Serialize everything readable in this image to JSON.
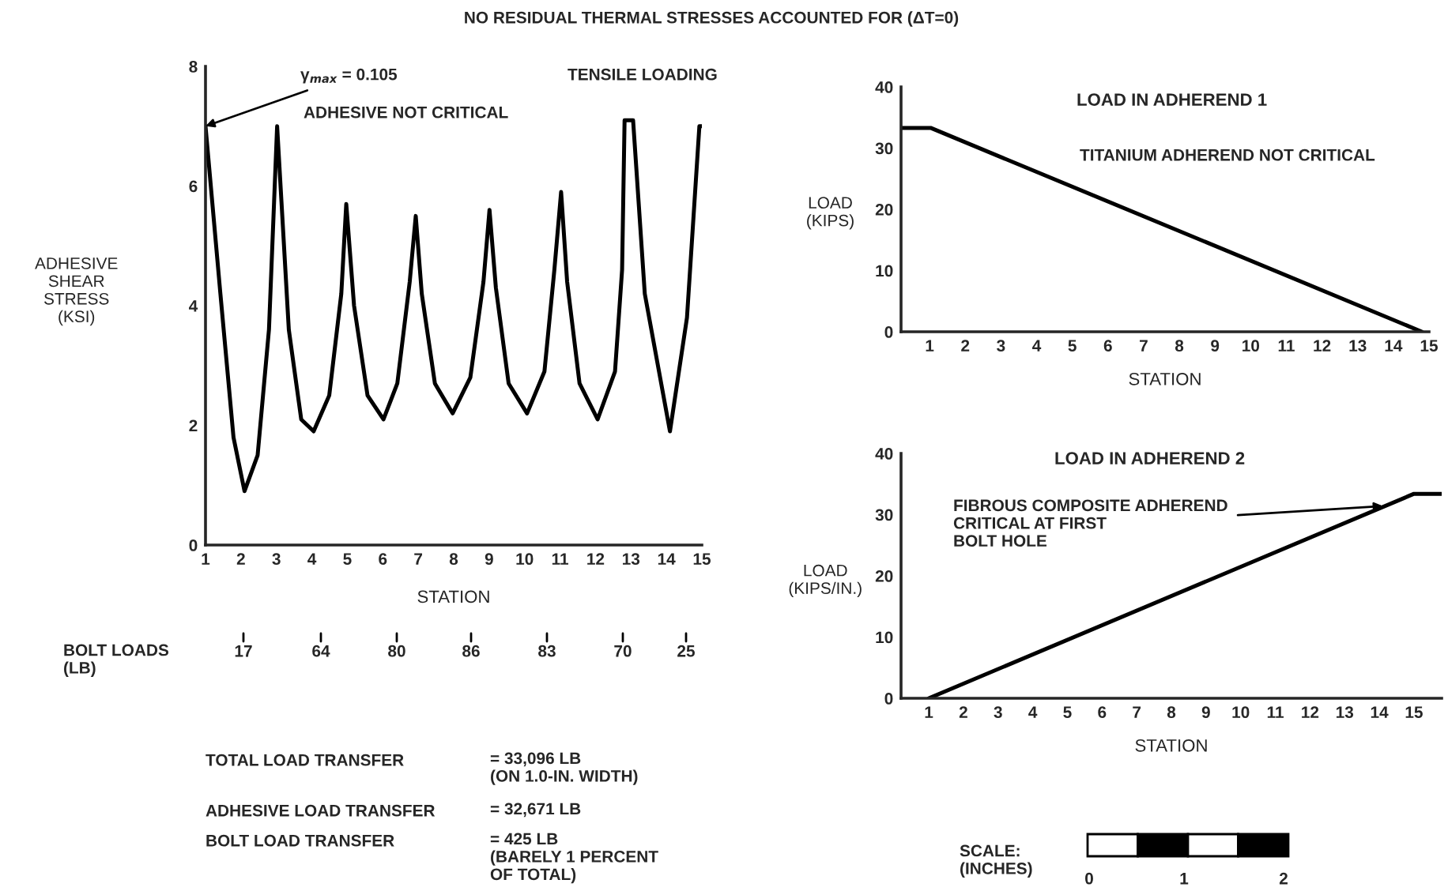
{
  "chart_data": [
    {
      "type": "line",
      "title": "NO RESIDUAL THERMAL STRESSES ACCOUNTED FOR (ΔT=0)",
      "xlabel": "STATION",
      "ylabel": "ADHESIVE\nSHEAR\nSTRESS\n(KSI)",
      "x": [
        1.0,
        1.42,
        1.79,
        2.1,
        2.47,
        2.79,
        3.02,
        3.35,
        3.7,
        4.05,
        4.49,
        4.83,
        4.97,
        5.19,
        5.57,
        6.02,
        6.41,
        6.76,
        6.93,
        7.1,
        7.47,
        7.97,
        8.47,
        8.84,
        9.01,
        9.19,
        9.55,
        10.07,
        10.56,
        10.84,
        11.03,
        11.2,
        11.55,
        12.06,
        12.55,
        12.75,
        12.82,
        13.06,
        13.39,
        14.1,
        14.58,
        14.93,
        15.0
      ],
      "series": [
        {
          "color": "#000000",
          "values": [
            7.0,
            4.2,
            1.8,
            0.9,
            1.5,
            3.6,
            7.0,
            3.6,
            2.1,
            1.9,
            2.5,
            4.2,
            5.7,
            4.0,
            2.5,
            2.1,
            2.7,
            4.4,
            5.5,
            4.2,
            2.7,
            2.2,
            2.8,
            4.4,
            5.6,
            4.3,
            2.7,
            2.2,
            2.9,
            4.6,
            5.9,
            4.4,
            2.7,
            2.1,
            2.9,
            4.6,
            7.1,
            7.1,
            4.2,
            1.9,
            3.8,
            7.0,
            7.0
          ]
        }
      ],
      "xlim": [
        1,
        15
      ],
      "xticks": [
        1,
        2,
        3,
        4,
        5,
        6,
        7,
        8,
        9,
        10,
        11,
        12,
        13,
        14,
        15
      ],
      "ylim": [
        0,
        8
      ],
      "yticks": [
        0,
        2,
        4,
        6,
        8
      ],
      "annotations": [
        {
          "text": "γ$_{max}$ = 0.105",
          "x": 1.0,
          "y": 7.0
        },
        "TENSILE LOADING",
        "ADHESIVE NOT CRITICAL",
        "TOTAL LOAD TRANSFER",
        "= 33,096 LB\n(ON 1.0-IN. WIDTH)",
        "ADHESIVE LOAD TRANSFER",
        "= 32,671 LB",
        "BOLT LOAD TRANSFER",
        "= 425 LB\n(BARELY 1 PERCENT\nOF TOTAL)",
        "BOLT LOADS\n(LB)",
        "17",
        "64",
        "80",
        "86",
        "83",
        "70",
        "25"
      ],
      "grid": false,
      "legend": false
    },
    {
      "type": "line",
      "title": "LOAD IN ADHEREND 1",
      "xlabel": "STATION",
      "ylabel": "LOAD\n(KIPS)",
      "x": [
        0.2,
        1.03,
        14.8
      ],
      "series": [
        {
          "color": "#000000",
          "values": [
            33.3,
            33.3,
            0
          ]
        }
      ],
      "xlim": [
        0.2,
        15
      ],
      "xticks": [
        1,
        2,
        3,
        4,
        5,
        6,
        7,
        8,
        9,
        10,
        11,
        12,
        13,
        14,
        15
      ],
      "ylim": [
        0,
        40
      ],
      "yticks": [
        0,
        10,
        20,
        30,
        40
      ],
      "annotations": [
        "TITANIUM ADHEREND NOT CRITICAL"
      ],
      "grid": false,
      "legend": false
    },
    {
      "type": "line",
      "title": "LOAD IN ADHEREND 2",
      "xlabel": "STATION",
      "ylabel": "LOAD\n(KIPS/IN.)",
      "x": [
        1.0,
        15.0,
        15.8
      ],
      "series": [
        {
          "color": "#000000",
          "values": [
            0,
            33.4,
            33.4
          ]
        }
      ],
      "xlim": [
        0.2,
        15.8
      ],
      "xticks": [
        1,
        2,
        3,
        4,
        5,
        6,
        7,
        8,
        9,
        10,
        11,
        12,
        13,
        14,
        15
      ],
      "ylim": [
        0,
        40
      ],
      "yticks": [
        0,
        10,
        20,
        30,
        40
      ],
      "annotations": [
        {
          "text": "FIBROUS COMPOSITE ADHEREND\nCRITICAL AT FIRST\nBOLT HOLE",
          "x": 14.1,
          "y": 31.4
        },
        "SCALE:\n(INCHES)",
        "0",
        "1",
        "2"
      ],
      "grid": false,
      "legend": false
    }
  ]
}
